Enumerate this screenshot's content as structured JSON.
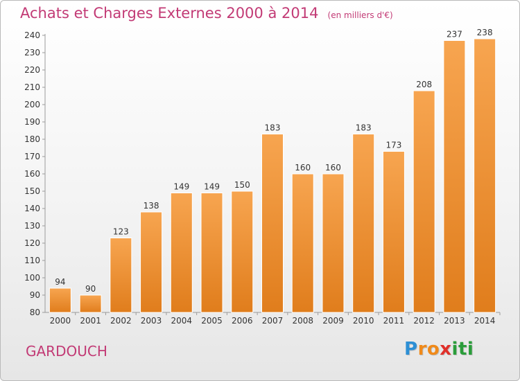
{
  "chart_data": {
    "type": "bar",
    "title": "Achats et Charges Externes 2000 à 2014",
    "subtitle": "(en milliers d'€)",
    "categories": [
      "2000",
      "2001",
      "2002",
      "2003",
      "2004",
      "2005",
      "2006",
      "2007",
      "2008",
      "2009",
      "2010",
      "2011",
      "2012",
      "2013",
      "2014"
    ],
    "values": [
      94,
      90,
      123,
      138,
      149,
      149,
      150,
      183,
      160,
      160,
      183,
      173,
      208,
      237,
      238
    ],
    "ylim": [
      80,
      240
    ],
    "yticks": [
      80,
      90,
      100,
      110,
      120,
      130,
      140,
      150,
      160,
      170,
      180,
      190,
      200,
      210,
      220,
      230,
      240
    ],
    "grid": false,
    "bar_color_light": "#f7a550",
    "bar_color_dark": "#e07d1c"
  },
  "place_name": "GARDOUCH",
  "logo": {
    "letters": [
      "P",
      "r",
      "o",
      "x",
      "i",
      "t",
      "i"
    ],
    "colors": [
      "#2d8fd5",
      "#f08a1a",
      "#f08a1a",
      "#e0302a",
      "#2a9d3a",
      "#2a9d3a",
      "#2a9d3a"
    ]
  },
  "title_color": "#c23a75"
}
